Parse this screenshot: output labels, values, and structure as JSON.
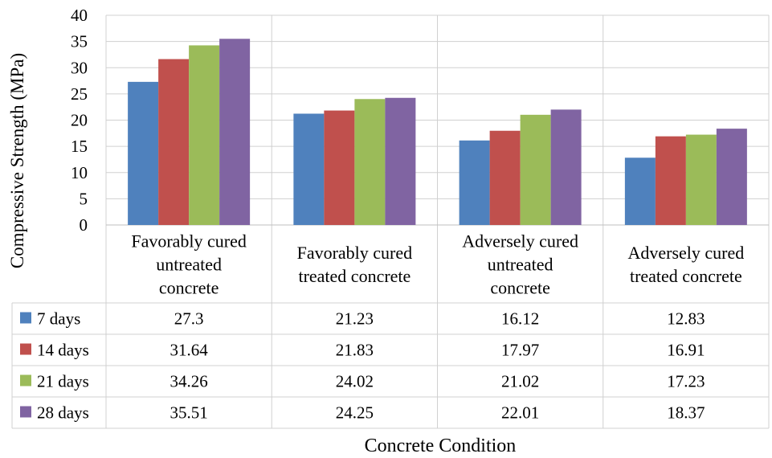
{
  "chart_data": {
    "type": "bar",
    "title": "",
    "xlabel": "Concrete Condition",
    "ylabel": "Compressive Strength (MPa)",
    "ylim": [
      0,
      40
    ],
    "ytick_step": 5,
    "grid": "horizontal and vertical",
    "legend": "data table",
    "categories": [
      [
        "Favorably cured",
        "untreated",
        "concrete"
      ],
      [
        "Favorably cured",
        "treated concrete"
      ],
      [
        "Adversely cured",
        "untreated",
        "concrete"
      ],
      [
        "Adversely cured",
        "treated concrete"
      ]
    ],
    "series": [
      {
        "name": "7 days",
        "color": "#4f81bd",
        "values": [
          27.3,
          21.23,
          16.12,
          12.83
        ],
        "labels": [
          "27.3",
          "21.23",
          "16.12",
          "12.83"
        ]
      },
      {
        "name": "14 days",
        "color": "#c0504d",
        "values": [
          31.64,
          21.83,
          17.97,
          16.91
        ],
        "labels": [
          "31.64",
          "21.83",
          "17.97",
          "16.91"
        ]
      },
      {
        "name": "21 days",
        "color": "#9bbb59",
        "values": [
          34.26,
          24.02,
          21.02,
          17.23
        ],
        "labels": [
          "34.26",
          "24.02",
          "21.02",
          "17.23"
        ]
      },
      {
        "name": "28 days",
        "color": "#8064a2",
        "values": [
          35.51,
          24.25,
          22.01,
          18.37
        ],
        "labels": [
          "35.51",
          "24.25",
          "22.01",
          "18.37"
        ]
      }
    ]
  }
}
